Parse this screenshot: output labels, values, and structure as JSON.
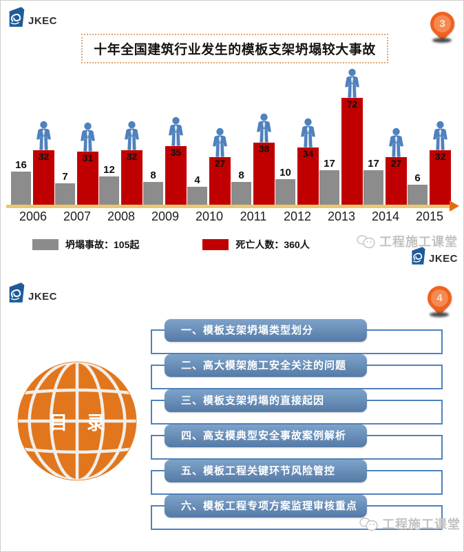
{
  "chart_data": {
    "type": "bar",
    "title": "十年全国建筑行业发生的模板支架坍塌较大事故",
    "categories": [
      "2006",
      "2007",
      "2008",
      "2009",
      "2010",
      "2011",
      "2012",
      "2013",
      "2014",
      "2015"
    ],
    "series": [
      {
        "name": "坍塌事故",
        "legend_label": "坍塌事故：105起",
        "color": "#8c8c8c",
        "values": [
          16,
          7,
          12,
          8,
          4,
          8,
          10,
          17,
          17,
          6
        ]
      },
      {
        "name": "死亡人数",
        "legend_label": "死亡人数：360人",
        "color": "#c00000",
        "values": [
          32,
          31,
          32,
          35,
          27,
          38,
          34,
          72,
          27,
          32
        ]
      }
    ],
    "totals": {
      "accidents": "105起",
      "deaths": "360人"
    },
    "value_labels": true,
    "grid": false,
    "legend_position": "bottom-left",
    "axis_color": "#ecc671",
    "axis_arrow_color": "#e46b0c",
    "person_icon_color": "#4f81bd"
  },
  "slide1": {
    "logo_text": "JKEC",
    "page_marker": "3",
    "title": "十年全国建筑行业发生的模板支架坍塌较大事故",
    "watermark_text": "工程施工课堂",
    "watermark_logo_text": "JKEC"
  },
  "slide2": {
    "logo_text": "JKEC",
    "page_marker": "4",
    "globe_label": "目 录",
    "globe_color": "#e2761c",
    "toc_items": [
      "一、模板支架坍塌类型划分",
      "二、高大模架施工安全关注的问题",
      "三、模板支架坍塌的直接起因",
      "四、高支模典型安全事故案例解析",
      "五、模板工程关键环节风险管控",
      "六、模板工程专项方案监理审核重点"
    ],
    "toc_bar_color": "#5b84b5",
    "watermark_text": "工程施工课堂"
  }
}
